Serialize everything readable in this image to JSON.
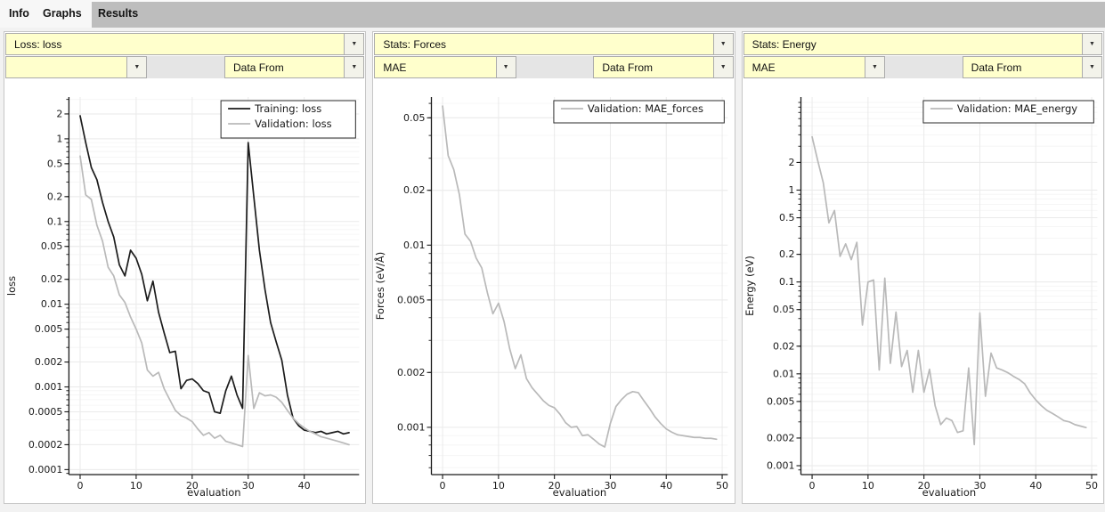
{
  "tabs": [
    {
      "label": "Info",
      "active": false
    },
    {
      "label": "Graphs",
      "active": true
    },
    {
      "label": "Results",
      "active": false
    }
  ],
  "icons": {
    "dropdown_arrow": "▼"
  },
  "colors": {
    "tabbar_bg": "#bdbdbd",
    "tab_active_zone": "#f7f7f7",
    "combo_bg": "#ffffcc",
    "combo_border": "#ababab",
    "spacer_bg": "#e5e5e5",
    "panel_border": "#c6c6c6",
    "line_black": "#1c1c1c",
    "line_gray": "#b9b9b9",
    "grid_major": "#eaeaea",
    "grid_minor": "#f6f6f6",
    "spine": "#1a1a1a"
  },
  "panels": [
    {
      "selector_top": "Loss: loss",
      "selector_left": "",
      "selector_right": "Data From"
    },
    {
      "selector_top": "Stats: Forces",
      "selector_left": "MAE",
      "selector_right": "Data From"
    },
    {
      "selector_top": "Stats: Energy",
      "selector_left": "MAE",
      "selector_right": "Data From"
    }
  ],
  "chart_data": [
    {
      "type": "line",
      "xlabel": "evaluation",
      "ylabel": "loss",
      "yscale": "log",
      "grid": true,
      "legend_position": "upper right",
      "xlim": [
        -2,
        49.8
      ],
      "ylim": [
        8.7e-05,
        3.2
      ],
      "xticks": [
        0,
        10,
        20,
        30,
        40
      ],
      "yticks": [
        2,
        1,
        0.5,
        0.2,
        0.1,
        0.05,
        0.02,
        0.01,
        0.005,
        0.002,
        0.001,
        0.0005,
        0.0002,
        0.0001
      ],
      "x_start": 0,
      "x_step": 1,
      "series": [
        {
          "name": "Training: loss",
          "color": "#1c1c1c",
          "values": [
            1.9,
            0.9,
            0.45,
            0.32,
            0.17,
            0.1,
            0.065,
            0.03,
            0.022,
            0.045,
            0.036,
            0.023,
            0.011,
            0.019,
            0.008,
            0.0045,
            0.0026,
            0.0027,
            0.00095,
            0.0012,
            0.00125,
            0.0011,
            0.0009,
            0.00085,
            0.0005,
            0.00048,
            0.0009,
            0.00135,
            0.0008,
            0.00055,
            0.9,
            0.2,
            0.045,
            0.015,
            0.006,
            0.0035,
            0.0021,
            0.0008,
            0.00042,
            0.00034,
            0.0003,
            0.00029,
            0.00028,
            0.00029,
            0.00027,
            0.00028,
            0.00029,
            0.00027,
            0.00028
          ]
        },
        {
          "name": "Validation: loss",
          "color": "#b9b9b9",
          "values": [
            0.62,
            0.21,
            0.185,
            0.09,
            0.058,
            0.028,
            0.022,
            0.013,
            0.0105,
            0.007,
            0.005,
            0.0034,
            0.0016,
            0.00135,
            0.0015,
            0.00095,
            0.0007,
            0.00052,
            0.00045,
            0.00042,
            0.00038,
            0.00031,
            0.00026,
            0.00028,
            0.00024,
            0.00026,
            0.00022,
            0.00021,
            0.0002,
            0.00019,
            0.0024,
            0.00055,
            0.00085,
            0.00078,
            0.0008,
            0.00075,
            0.00065,
            0.00052,
            0.00042,
            0.00036,
            0.00032,
            0.00029,
            0.00027,
            0.00025,
            0.00024,
            0.00023,
            0.00022,
            0.00021,
            0.0002
          ]
        }
      ]
    },
    {
      "type": "line",
      "xlabel": "evaluation",
      "ylabel": "Forces (eV/Å)",
      "yscale": "log",
      "grid": true,
      "legend_position": "upper right",
      "xlim": [
        -2,
        51
      ],
      "ylim": [
        0.00055,
        0.065
      ],
      "xticks": [
        0,
        10,
        20,
        30,
        40,
        50
      ],
      "yticks": [
        0.05,
        0.02,
        0.01,
        0.005,
        0.002,
        0.001
      ],
      "x_start": 0,
      "x_step": 1,
      "series": [
        {
          "name": "Validation: MAE_forces",
          "color": "#b9b9b9",
          "values": [
            0.058,
            0.031,
            0.026,
            0.019,
            0.0115,
            0.0105,
            0.0085,
            0.0075,
            0.0055,
            0.0042,
            0.0048,
            0.0038,
            0.0027,
            0.0021,
            0.0025,
            0.00185,
            0.00165,
            0.00152,
            0.0014,
            0.00132,
            0.00128,
            0.00118,
            0.00106,
            0.001,
            0.00101,
            0.0009,
            0.00091,
            0.00086,
            0.00081,
            0.00078,
            0.00105,
            0.0013,
            0.00142,
            0.00152,
            0.00157,
            0.00155,
            0.0014,
            0.00127,
            0.00114,
            0.00105,
            0.00098,
            0.00094,
            0.00091,
            0.0009,
            0.00089,
            0.00088,
            0.00088,
            0.00087,
            0.00087,
            0.00086
          ]
        }
      ]
    },
    {
      "type": "line",
      "xlabel": "evaluation",
      "ylabel": "Energy (eV)",
      "yscale": "log",
      "grid": true,
      "legend_position": "upper right",
      "xlim": [
        -2,
        51
      ],
      "ylim": [
        0.0008,
        10.3
      ],
      "xticks": [
        0,
        10,
        20,
        30,
        40,
        50
      ],
      "yticks": [
        2,
        1,
        0.5,
        0.2,
        0.1,
        0.05,
        0.02,
        0.01,
        0.005,
        0.002,
        0.001
      ],
      "x_start": 0,
      "x_step": 1,
      "series": [
        {
          "name": "Validation: MAE_energy",
          "color": "#b9b9b9",
          "values": [
            3.8,
            2.1,
            1.2,
            0.44,
            0.6,
            0.19,
            0.26,
            0.175,
            0.27,
            0.034,
            0.1,
            0.105,
            0.011,
            0.11,
            0.013,
            0.047,
            0.012,
            0.018,
            0.0063,
            0.018,
            0.0063,
            0.0112,
            0.0045,
            0.0028,
            0.0033,
            0.0031,
            0.0023,
            0.0024,
            0.0116,
            0.0017,
            0.046,
            0.0057,
            0.0168,
            0.0116,
            0.011,
            0.0103,
            0.0094,
            0.0087,
            0.0078,
            0.0062,
            0.0052,
            0.0045,
            0.004,
            0.0037,
            0.0034,
            0.0031,
            0.003,
            0.0028,
            0.0027,
            0.0026
          ]
        }
      ]
    }
  ]
}
